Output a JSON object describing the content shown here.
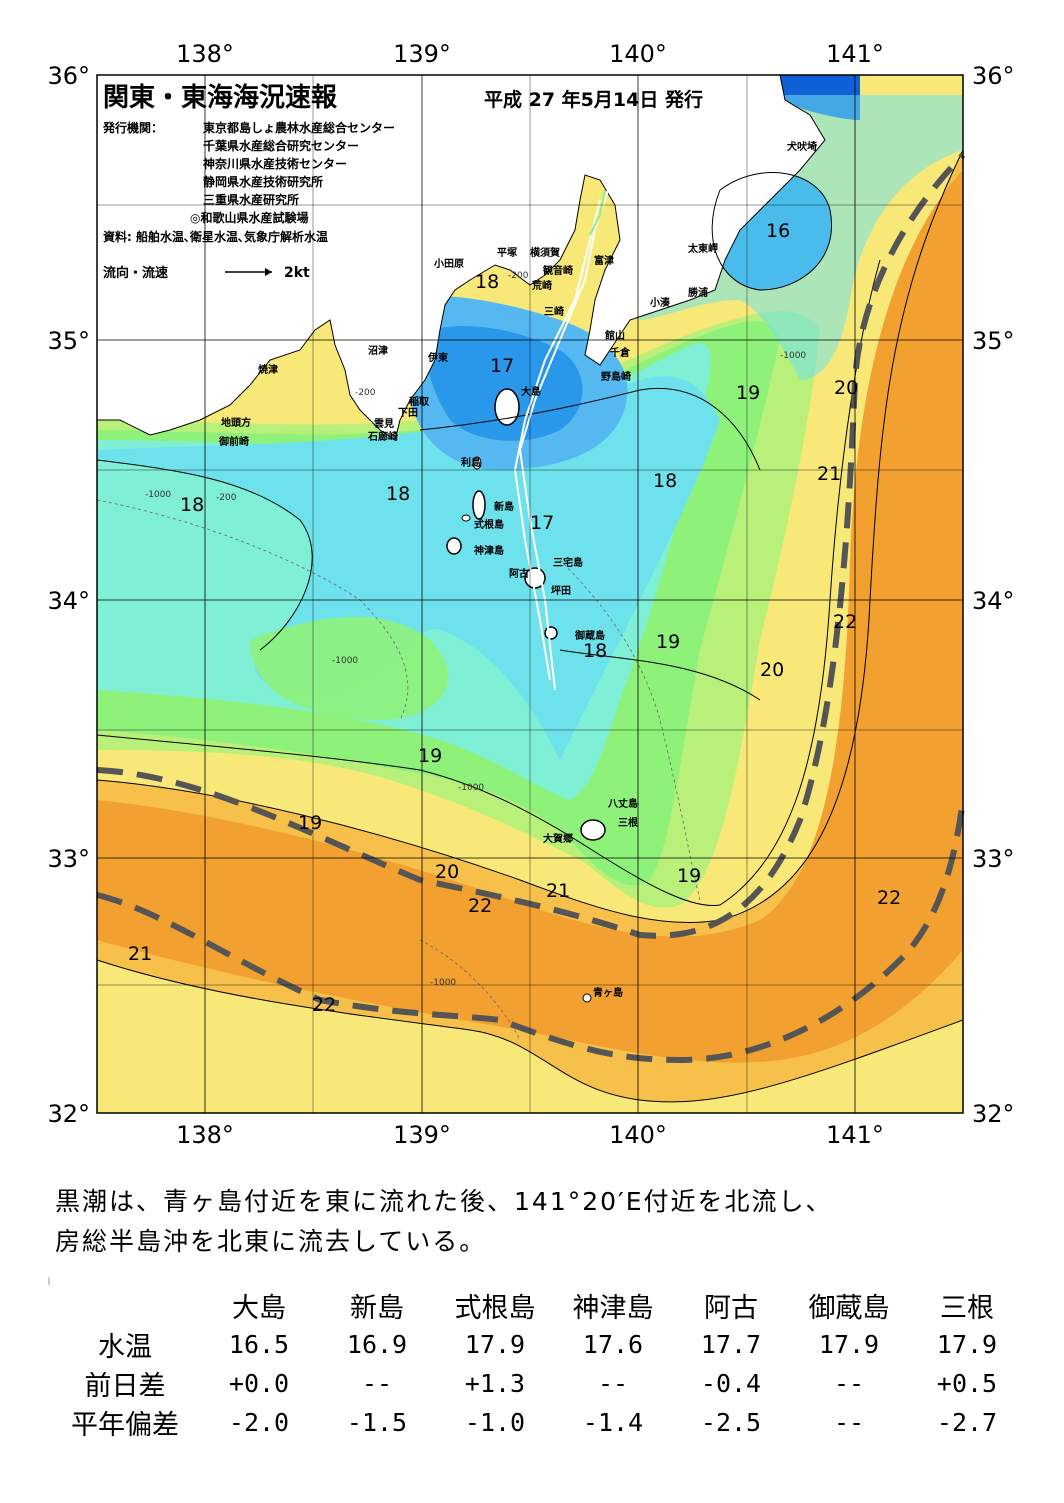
{
  "map": {
    "title": "関東・東海海況速報",
    "issue_date": "平成 27 年5月14日 発行",
    "publisher_label": "発行機関：",
    "publishers": [
      "東京都島しょ農林水産総合センター",
      "千葉県水産総合研究センター",
      "神奈川県水産技術センター",
      "静岡県水産技術研究所",
      "三重県水産研究所",
      "◎和歌山県水産試験場"
    ],
    "sources": "資料: 船舶水温､衛星水温､気象庁解析水温",
    "current_legend": "流向・流速",
    "current_scale": "2kt",
    "longitudes": [
      "138°",
      "139°",
      "140°",
      "141°"
    ],
    "latitudes": [
      "36°",
      "35°",
      "34°",
      "33°",
      "32°"
    ],
    "place_names": {
      "inubosaki": "犬吠埼",
      "taitomisaki": "太東岬",
      "katsuura": "勝浦",
      "kominato": "小湊",
      "futtsu": "富津",
      "kannonzaki": "観音崎",
      "yokosuka": "横須賀",
      "hiratsuka": "平塚",
      "odawara": "小田原",
      "arasaki": "荒崎",
      "misaki": "三崎",
      "tateyama": "館山",
      "chikura": "千倉",
      "nojimazaki": "野島崎",
      "numazu": "沼津",
      "ito": "伊東",
      "yaizu": "焼津",
      "inatori": "稲取",
      "shimoda": "下田",
      "kumomi": "雲見",
      "irozaki": "石廊崎",
      "jitogata": "地頭方",
      "omaezaki": "御前崎",
      "oshima": "大島",
      "toshima": "利島",
      "niijima": "新島",
      "shikinejima": "式根島",
      "kozushima": "神津島",
      "ako": "阿古",
      "miyakejima": "三宅島",
      "tsubota": "坪田",
      "mikurajima": "御蔵島",
      "hachijojima": "八丈島",
      "mitsune": "三根",
      "okago": "大賀郷",
      "aogashima": "青ヶ島"
    },
    "isotherm_labels": [
      "16",
      "18",
      "17",
      "19",
      "20",
      "21",
      "18",
      "18",
      "17",
      "18",
      "19",
      "20",
      "22",
      "19",
      "19",
      "20",
      "21",
      "22",
      "19",
      "21",
      "22",
      "22"
    ],
    "depth_labels": [
      "-200",
      "-1000"
    ]
  },
  "summary": {
    "line1": "黒潮は、青ヶ島付近を東に流れた後、141°20′E付近を北流し、",
    "line2": "房総半島沖を北東に流去している。"
  },
  "obs_table": {
    "stations": [
      "大島",
      "新島",
      "式根島",
      "神津島",
      "阿古",
      "御蔵島",
      "三根"
    ],
    "rows": [
      {
        "label": "水温",
        "values": [
          "16.5",
          "16.9",
          "17.9",
          "17.6",
          "17.7",
          "17.9",
          "17.9"
        ]
      },
      {
        "label": "前日差",
        "values": [
          "+0.0",
          "--",
          "+1.3",
          "--",
          "-0.4",
          "--",
          "+0.5"
        ]
      },
      {
        "label": "平年偏差",
        "values": [
          "-2.0",
          "-1.5",
          "-1.0",
          "-1.4",
          "-2.5",
          "--",
          "-2.7"
        ]
      }
    ]
  },
  "colors": {
    "cold_blue": "#1e8ee8",
    "mid_blue": "#56b8f0",
    "cyan": "#6ee2ec",
    "aqua": "#7ff0d6",
    "green": "#8ef27a",
    "light_green": "#b8f07a",
    "yellow": "#f8e878",
    "light_orange": "#f6c04a",
    "orange": "#f2a030",
    "kuroshio_axis": "#555555"
  }
}
